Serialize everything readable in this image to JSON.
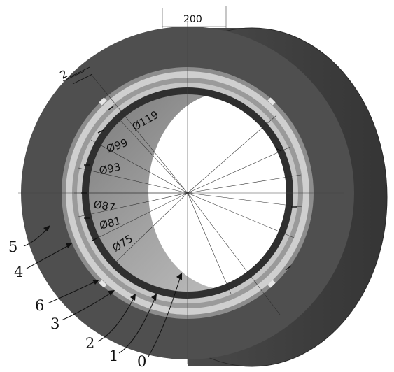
{
  "figure": {
    "top_dimension": "200",
    "thickness_dimension": "2",
    "diameters": [
      "Ø119",
      "Ø99",
      "Ø93",
      "Ø87",
      "Ø81",
      "Ø75"
    ],
    "callouts": [
      "5",
      "4",
      "6",
      "3",
      "2",
      "1",
      "0"
    ]
  },
  "colors": {
    "outer_shell": "#4e4e4e",
    "shell_side": "#3f3f3f",
    "light_ring": "#c9c9c9",
    "mid_ring": "#8c8c8c",
    "dark_ring": "#2f2f2f",
    "bore_inner": "#8f8f8f",
    "hole": "#ffffff"
  }
}
